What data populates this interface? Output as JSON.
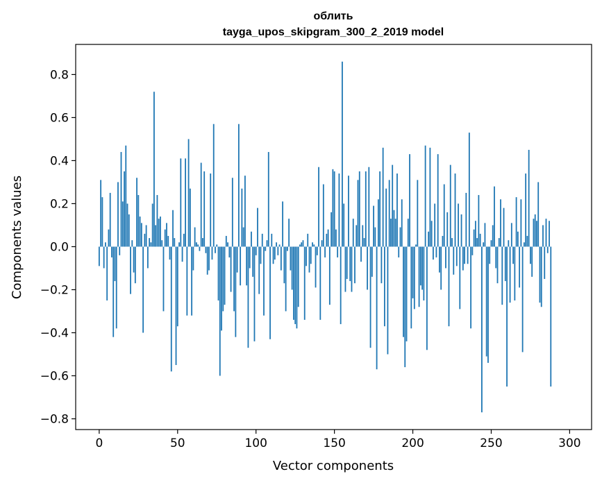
{
  "chart_data": {
    "type": "bar",
    "title_line1": "облить",
    "title_line2": "tayga_upos_skipgram_300_2_2019 model",
    "xlabel": "Vector components",
    "ylabel": "Components values",
    "xlim": [
      -15,
      314
    ],
    "ylim": [
      -0.85,
      0.94
    ],
    "x_ticks": [
      0,
      50,
      100,
      150,
      200,
      250,
      300
    ],
    "x_tick_labels": [
      "0",
      "50",
      "100",
      "150",
      "200",
      "250",
      "300"
    ],
    "y_ticks": [
      -0.8,
      -0.6,
      -0.4,
      -0.2,
      0.0,
      0.2,
      0.4,
      0.6,
      0.8
    ],
    "y_tick_labels": [
      "−0.8",
      "−0.6",
      "−0.4",
      "−0.2",
      "0.0",
      "0.2",
      "0.4",
      "0.6",
      "0.8"
    ],
    "bar_color": "#1f77b4",
    "values": [
      -0.09,
      0.31,
      0.23,
      -0.1,
      0.02,
      -0.25,
      0.08,
      0.25,
      -0.05,
      -0.42,
      -0.16,
      -0.38,
      0.3,
      -0.04,
      0.44,
      0.21,
      0.35,
      0.47,
      0.2,
      0.15,
      -0.22,
      0.03,
      -0.12,
      -0.17,
      0.32,
      0.24,
      0.14,
      0.11,
      -0.4,
      0.06,
      0.1,
      -0.1,
      0.04,
      0.02,
      0.2,
      0.72,
      0.1,
      0.24,
      0.13,
      0.14,
      0.03,
      -0.3,
      0.08,
      0.11,
      0.05,
      -0.06,
      -0.58,
      0.17,
      0.04,
      -0.55,
      -0.37,
      0.02,
      0.41,
      -0.07,
      0.06,
      0.41,
      -0.32,
      0.5,
      0.27,
      -0.32,
      -0.11,
      0.09,
      0.02,
      0.01,
      -0.02,
      0.39,
      0.04,
      0.35,
      -0.03,
      -0.13,
      -0.11,
      0.34,
      -0.06,
      0.57,
      -0.03,
      0.01,
      -0.25,
      -0.6,
      -0.39,
      -0.3,
      -0.27,
      0.05,
      0.02,
      -0.05,
      -0.21,
      0.32,
      -0.3,
      -0.42,
      -0.12,
      0.57,
      -0.18,
      0.27,
      0.09,
      0.33,
      -0.18,
      -0.47,
      -0.1,
      0.07,
      -0.14,
      -0.44,
      -0.04,
      0.18,
      -0.22,
      -0.08,
      0.06,
      -0.32,
      -0.02,
      0.03,
      0.44,
      -0.43,
      0.06,
      -0.08,
      -0.06,
      0.02,
      -0.04,
      0.01,
      -0.11,
      0.21,
      -0.17,
      -0.3,
      -0.02,
      0.13,
      -0.11,
      -0.2,
      -0.34,
      -0.36,
      -0.38,
      -0.28,
      0.01,
      0.02,
      0.03,
      -0.34,
      -0.09,
      0.06,
      -0.12,
      -0.08,
      0.02,
      0.01,
      -0.19,
      -0.04,
      0.37,
      -0.34,
      0.03,
      0.29,
      -0.05,
      0.06,
      0.08,
      -0.27,
      0.16,
      0.36,
      0.35,
      0.08,
      -0.05,
      0.34,
      -0.36,
      0.86,
      0.2,
      -0.21,
      -0.15,
      0.33,
      -0.16,
      -0.21,
      0.13,
      -0.17,
      0.1,
      0.31,
      0.35,
      -0.07,
      0.1,
      0.04,
      0.35,
      -0.2,
      0.37,
      -0.47,
      -0.14,
      0.19,
      0.09,
      -0.57,
      0.22,
      0.35,
      -0.17,
      0.46,
      -0.37,
      0.27,
      -0.5,
      0.31,
      0.13,
      0.38,
      0.17,
      0.13,
      0.34,
      -0.05,
      0.09,
      0.22,
      -0.42,
      -0.56,
      -0.44,
      0.13,
      0.43,
      -0.38,
      -0.24,
      -0.29,
      0.01,
      0.31,
      -0.28,
      -0.18,
      -0.2,
      -0.25,
      0.47,
      -0.48,
      0.07,
      0.46,
      0.12,
      -0.06,
      0.2,
      -0.05,
      0.43,
      -0.12,
      -0.2,
      0.05,
      0.29,
      -0.1,
      0.16,
      -0.37,
      0.38,
      0.04,
      -0.13,
      0.34,
      -0.09,
      0.2,
      -0.29,
      0.15,
      -0.11,
      -0.08,
      0.25,
      -0.08,
      0.53,
      -0.38,
      -0.04,
      0.08,
      0.12,
      0.04,
      0.24,
      0.06,
      -0.77,
      0.02,
      0.11,
      -0.51,
      -0.54,
      -0.08,
      0.03,
      0.1,
      0.28,
      -0.1,
      -0.17,
      0.04,
      0.22,
      -0.27,
      0.18,
      -0.16,
      -0.65,
      0.03,
      -0.26,
      0.11,
      -0.08,
      -0.25,
      0.23,
      0.07,
      -0.19,
      0.22,
      -0.49,
      0.02,
      0.34,
      0.05,
      0.45,
      -0.08,
      -0.14,
      0.13,
      0.15,
      0.12,
      0.3,
      -0.26,
      -0.28,
      0.1,
      -0.15,
      0.13,
      -0.03,
      0.12,
      -0.65
    ]
  }
}
